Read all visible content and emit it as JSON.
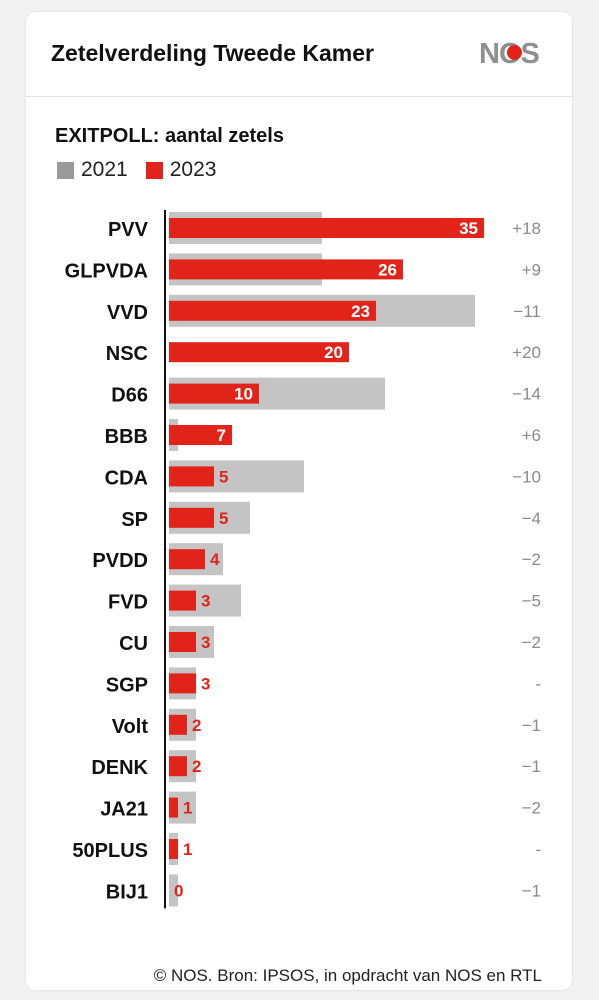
{
  "header": {
    "title": "Zetelverdeling Tweede Kamer",
    "logo_text": "NOS"
  },
  "colors": {
    "bar_2021": "#c4c4c4",
    "bar_2023": "#e2231a",
    "legend_2021": "#9a9a9a",
    "label_inside": "#ffffff",
    "label_outside": "#e2231a",
    "diff_text": "#8a8a8a",
    "axis": "#111111"
  },
  "footer": {
    "source": "© NOS. Bron: IPSOS, in opdracht van NOS en RTL"
  },
  "chart_data": {
    "type": "bar",
    "orientation": "horizontal",
    "title": "EXITPOLL: aantal zetels",
    "legend_position": "top-left",
    "grid": false,
    "xlim": [
      0,
      35
    ],
    "categories": [
      "PVV",
      "GLPVDA",
      "VVD",
      "NSC",
      "D66",
      "BBB",
      "CDA",
      "SP",
      "PVDD",
      "FVD",
      "CU",
      "SGP",
      "Volt",
      "DENK",
      "JA21",
      "50PLUS",
      "BIJ1"
    ],
    "series": [
      {
        "name": "2021",
        "values": [
          17,
          17,
          34,
          0,
          24,
          1,
          15,
          9,
          6,
          8,
          5,
          3,
          3,
          3,
          3,
          1,
          1
        ]
      },
      {
        "name": "2023",
        "values": [
          35,
          26,
          23,
          20,
          10,
          7,
          5,
          5,
          4,
          3,
          3,
          3,
          2,
          2,
          1,
          1,
          0
        ]
      }
    ],
    "differences": [
      "+18",
      "+9",
      "−11",
      "+20",
      "−14",
      "+6",
      "−10",
      "−4",
      "−2",
      "−5",
      "−2",
      "-",
      "−1",
      "−1",
      "−2",
      "-",
      "−1"
    ]
  }
}
